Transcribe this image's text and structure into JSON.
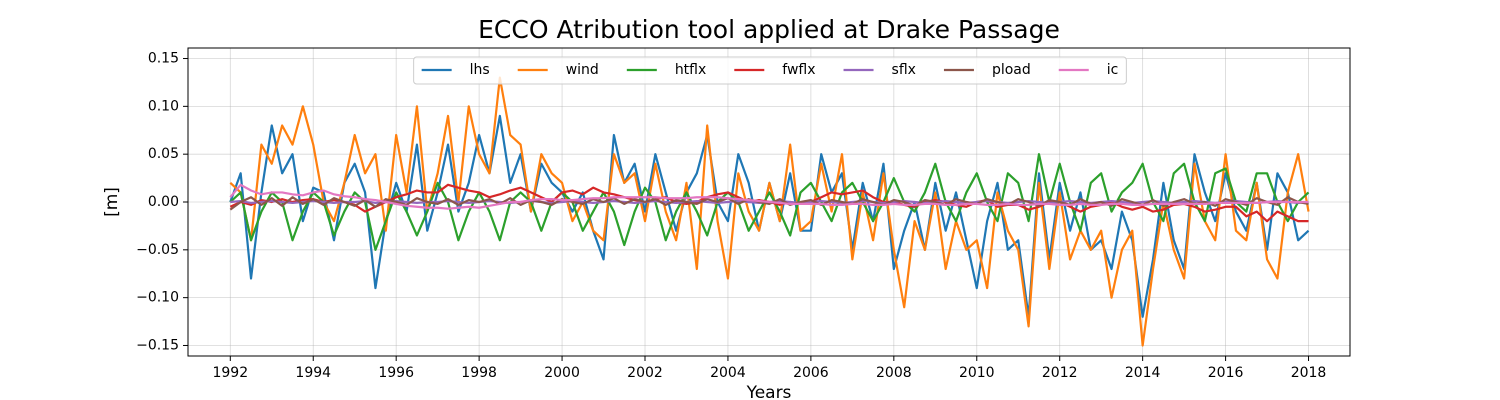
{
  "chart_data": {
    "type": "line",
    "title": "ECCO Atribution tool applied at Drake Passage",
    "xlabel": "Years",
    "ylabel": "[m]",
    "grid": true,
    "legend": "upper center",
    "xlim": [
      1990.98,
      2019.0
    ],
    "ylim": [
      -0.161,
      0.161
    ],
    "xticks": [
      1992,
      1994,
      1996,
      1998,
      2000,
      2002,
      2004,
      2006,
      2008,
      2010,
      2012,
      2014,
      2016,
      2018
    ],
    "yticks": [
      {
        "value": -0.15,
        "label": "−0.15"
      },
      {
        "value": -0.1,
        "label": "−0.10"
      },
      {
        "value": -0.05,
        "label": "−0.05"
      },
      {
        "value": 0,
        "label": "0.00"
      },
      {
        "value": 0.05,
        "label": "0.05"
      },
      {
        "value": 0.1,
        "label": "0.10"
      },
      {
        "value": 0.15,
        "label": "0.15"
      }
    ],
    "x": [
      1992.0,
      1992.25,
      1992.5,
      1992.75,
      1993.0,
      1993.25,
      1993.5,
      1993.75,
      1994.0,
      1994.25,
      1994.5,
      1994.75,
      1995.0,
      1995.25,
      1995.5,
      1995.75,
      1996.0,
      1996.25,
      1996.5,
      1996.75,
      1997.0,
      1997.25,
      1997.5,
      1997.75,
      1998.0,
      1998.25,
      1998.5,
      1998.75,
      1999.0,
      1999.25,
      1999.5,
      1999.75,
      2000.0,
      2000.25,
      2000.5,
      2000.75,
      2001.0,
      2001.25,
      2001.5,
      2001.75,
      2002.0,
      2002.25,
      2002.5,
      2002.75,
      2003.0,
      2003.25,
      2003.5,
      2003.75,
      2004.0,
      2004.25,
      2004.5,
      2004.75,
      2005.0,
      2005.25,
      2005.5,
      2005.75,
      2006.0,
      2006.25,
      2006.5,
      2006.75,
      2007.0,
      2007.25,
      2007.5,
      2007.75,
      2008.0,
      2008.25,
      2008.5,
      2008.75,
      2009.0,
      2009.25,
      2009.5,
      2009.75,
      2010.0,
      2010.25,
      2010.5,
      2010.75,
      2011.0,
      2011.25,
      2011.5,
      2011.75,
      2012.0,
      2012.25,
      2012.5,
      2012.75,
      2013.0,
      2013.25,
      2013.5,
      2013.75,
      2014.0,
      2014.25,
      2014.5,
      2014.75,
      2015.0,
      2015.25,
      2015.5,
      2015.75,
      2016.0,
      2016.25,
      2016.5,
      2016.75,
      2017.0,
      2017.25,
      2017.5,
      2017.75,
      2018.0
    ],
    "series": [
      {
        "name": "lhs",
        "color": "#1f77b4",
        "values": [
          0.0,
          0.03,
          -0.08,
          0.01,
          0.08,
          0.03,
          0.05,
          -0.02,
          0.015,
          0.01,
          -0.04,
          0.02,
          0.04,
          0.01,
          -0.09,
          -0.02,
          0.02,
          -0.01,
          0.06,
          -0.03,
          0.01,
          0.06,
          -0.01,
          0.02,
          0.07,
          0.03,
          0.09,
          0.02,
          0.05,
          -0.01,
          0.04,
          0.02,
          0.01,
          -0.01,
          0.01,
          -0.03,
          -0.06,
          0.07,
          0.02,
          0.04,
          -0.01,
          0.05,
          0.01,
          -0.03,
          0.01,
          0.03,
          0.07,
          0.0,
          -0.02,
          0.05,
          0.02,
          -0.03,
          0.02,
          -0.02,
          0.03,
          -0.03,
          -0.03,
          0.05,
          0.01,
          0.03,
          -0.05,
          0.02,
          -0.02,
          0.04,
          -0.07,
          -0.03,
          0.0,
          -0.05,
          0.02,
          -0.03,
          0.01,
          -0.04,
          -0.09,
          -0.02,
          0.02,
          -0.05,
          -0.04,
          -0.12,
          0.03,
          -0.06,
          0.02,
          -0.03,
          0.01,
          -0.05,
          -0.04,
          -0.07,
          -0.01,
          -0.04,
          -0.12,
          -0.06,
          0.02,
          -0.04,
          -0.07,
          0.05,
          0.01,
          -0.02,
          0.03,
          -0.01,
          -0.03,
          0.02,
          -0.05,
          0.03,
          0.01,
          -0.04,
          -0.03
        ]
      },
      {
        "name": "wind",
        "color": "#ff7f0e",
        "values": [
          0.02,
          0.01,
          -0.04,
          0.06,
          0.04,
          0.08,
          0.06,
          0.1,
          0.06,
          0.0,
          -0.02,
          0.02,
          0.07,
          0.03,
          0.05,
          -0.03,
          0.07,
          0.01,
          0.1,
          -0.01,
          0.03,
          0.09,
          0.0,
          0.1,
          0.05,
          0.03,
          0.13,
          0.07,
          0.06,
          -0.01,
          0.05,
          0.03,
          0.02,
          -0.02,
          0.0,
          -0.03,
          -0.04,
          0.05,
          0.02,
          0.03,
          -0.02,
          0.04,
          -0.01,
          -0.04,
          0.02,
          -0.07,
          0.08,
          -0.02,
          -0.08,
          0.03,
          -0.01,
          -0.03,
          0.02,
          -0.02,
          0.06,
          -0.03,
          -0.02,
          0.04,
          -0.01,
          0.05,
          -0.06,
          0.01,
          -0.04,
          0.03,
          -0.05,
          -0.11,
          -0.02,
          -0.05,
          0.01,
          -0.07,
          -0.02,
          -0.05,
          -0.04,
          -0.09,
          0.01,
          -0.03,
          -0.05,
          -0.13,
          0.02,
          -0.07,
          0.01,
          -0.06,
          -0.03,
          -0.05,
          -0.03,
          -0.1,
          -0.05,
          -0.03,
          -0.15,
          -0.07,
          0.0,
          -0.05,
          -0.08,
          0.04,
          -0.02,
          -0.04,
          0.05,
          -0.03,
          -0.04,
          0.02,
          -0.06,
          -0.08,
          0.01,
          0.05,
          -0.01
        ]
      },
      {
        "name": "htflx",
        "color": "#2ca02c",
        "values": [
          0.0,
          0.01,
          -0.04,
          -0.01,
          0.01,
          0.0,
          -0.04,
          -0.01,
          0.01,
          0.0,
          -0.035,
          -0.01,
          0.01,
          0.0,
          -0.05,
          -0.02,
          0.01,
          -0.01,
          -0.035,
          -0.01,
          0.02,
          0.0,
          -0.04,
          -0.01,
          0.01,
          -0.01,
          -0.04,
          0.0,
          0.01,
          0.0,
          -0.03,
          0.0,
          0.01,
          0.0,
          -0.03,
          -0.01,
          0.01,
          -0.01,
          -0.045,
          -0.01,
          0.015,
          0.0,
          -0.04,
          -0.01,
          0.01,
          -0.01,
          -0.035,
          0.0,
          0.01,
          0.0,
          -0.03,
          -0.01,
          0.01,
          -0.01,
          -0.035,
          0.01,
          0.02,
          0.0,
          -0.02,
          0.01,
          0.02,
          0.0,
          -0.02,
          0.0,
          0.025,
          0.0,
          -0.01,
          0.01,
          0.04,
          0.0,
          -0.02,
          0.01,
          0.03,
          0.0,
          -0.02,
          0.03,
          0.02,
          -0.02,
          0.05,
          0.0,
          0.04,
          0.0,
          -0.03,
          0.02,
          0.03,
          -0.01,
          0.01,
          0.02,
          0.04,
          0.0,
          -0.02,
          0.03,
          0.04,
          0.0,
          -0.02,
          0.03,
          0.035,
          0.0,
          -0.01,
          0.03,
          0.03,
          0.0,
          -0.02,
          0.0,
          0.01
        ]
      },
      {
        "name": "fwflx",
        "color": "#d62728",
        "values": [
          -0.005,
          0.0,
          -0.003,
          0.002,
          0.0,
          0.003,
          0.0,
          0.002,
          0.003,
          0.0,
          0.002,
          0.0,
          -0.003,
          -0.01,
          -0.005,
          0.0,
          0.005,
          0.008,
          0.012,
          0.01,
          0.01,
          0.018,
          0.015,
          0.012,
          0.01,
          0.005,
          0.008,
          0.012,
          0.015,
          0.01,
          0.005,
          0.0,
          0.01,
          0.012,
          0.008,
          0.015,
          0.01,
          0.008,
          0.005,
          0.002,
          0.0,
          0.003,
          0.005,
          0.0,
          -0.002,
          0.0,
          0.005,
          0.008,
          0.01,
          0.005,
          0.0,
          0.002,
          0.0,
          -0.003,
          0.0,
          -0.002,
          0.0,
          0.005,
          0.01,
          0.008,
          0.01,
          0.012,
          0.005,
          0.0,
          0.0,
          -0.003,
          -0.005,
          0.0,
          0.002,
          0.0,
          -0.003,
          -0.005,
          0.0,
          0.002,
          -0.005,
          -0.003,
          -0.003,
          -0.008,
          -0.005,
          0.0,
          0.0,
          -0.005,
          -0.01,
          -0.005,
          -0.003,
          0.0,
          -0.005,
          -0.008,
          -0.005,
          -0.01,
          -0.008,
          -0.003,
          -0.002,
          -0.005,
          -0.01,
          -0.008,
          -0.005,
          -0.005,
          -0.015,
          -0.01,
          -0.02,
          -0.01,
          -0.015,
          -0.02,
          -0.02
        ]
      },
      {
        "name": "sflx",
        "color": "#9467bd",
        "values": [
          0.0,
          0.001,
          -0.001,
          0.0,
          0.001,
          0.0,
          -0.001,
          0.0,
          0.001,
          0.0,
          -0.001,
          0.0,
          0.0,
          0.001,
          -0.001,
          0.0,
          0.001,
          0.0,
          -0.001,
          0.0,
          0.0,
          0.001,
          0.0,
          -0.001,
          0.0,
          0.001,
          0.0,
          -0.001,
          0.0,
          0.001,
          0.0,
          -0.001,
          0.0,
          0.001,
          0.0,
          -0.001,
          0.0,
          0.001,
          0.0,
          -0.001,
          0.0,
          0.001,
          0.0,
          -0.001,
          0.0,
          0.001,
          0.0,
          -0.001,
          0.0,
          0.001,
          0.0,
          -0.001,
          0.0,
          0.001,
          0.0,
          -0.001,
          0.0,
          0.001,
          0.0,
          -0.001,
          0.0,
          0.001,
          0.0,
          -0.001,
          0.0,
          0.001,
          0.0,
          -0.001,
          0.0,
          0.001,
          0.0,
          -0.001,
          0.0,
          0.001,
          0.0,
          -0.001,
          0.0,
          0.001,
          0.0,
          -0.001,
          0.0,
          0.001,
          0.0,
          -0.001,
          0.0,
          0.001,
          0.0,
          -0.001,
          0.0,
          0.001,
          0.0,
          -0.001,
          0.0,
          0.001,
          0.0,
          -0.001,
          0.0,
          0.001,
          0.0,
          -0.001,
          0.0,
          0.001,
          0.0,
          -0.001,
          0.0
        ]
      },
      {
        "name": "pload",
        "color": "#8c564b",
        "values": [
          -0.008,
          0.0,
          0.005,
          -0.003,
          0.004,
          -0.004,
          0.005,
          -0.002,
          0.003,
          -0.003,
          0.004,
          0.0,
          -0.004,
          0.002,
          -0.005,
          0.003,
          0.0,
          -0.003,
          0.004,
          0.0,
          -0.002,
          0.003,
          -0.003,
          0.002,
          0.0,
          0.003,
          -0.002,
          0.004,
          -0.003,
          0.002,
          0.0,
          -0.003,
          0.003,
          0.0,
          -0.002,
          0.003,
          0.0,
          0.004,
          -0.002,
          0.003,
          0.0,
          0.003,
          -0.003,
          0.002,
          0.0,
          -0.002,
          0.003,
          0.0,
          0.004,
          -0.002,
          0.003,
          0.0,
          -0.002,
          0.003,
          -0.003,
          0.0,
          0.002,
          -0.003,
          0.002,
          0.0,
          -0.002,
          0.003,
          0.0,
          -0.003,
          0.002,
          0.0,
          -0.004,
          0.002,
          0.0,
          -0.003,
          0.003,
          0.0,
          -0.002,
          0.003,
          0.0,
          -0.003,
          0.003,
          0.0,
          -0.004,
          0.002,
          0.0,
          -0.003,
          0.003,
          -0.002,
          0.0,
          -0.004,
          0.003,
          0.0,
          -0.003,
          0.002,
          -0.004,
          0.0,
          0.003,
          -0.002,
          0.0,
          -0.004,
          0.003,
          0.0,
          -0.003,
          0.004,
          0.0,
          -0.003,
          0.005,
          0.0,
          -0.002
        ]
      },
      {
        "name": "ic",
        "color": "#e377c2",
        "values": [
          0.005,
          0.018,
          0.012,
          0.008,
          0.01,
          0.01,
          0.008,
          0.007,
          0.01,
          0.012,
          0.008,
          0.006,
          0.005,
          0.003,
          0.002,
          0.0,
          -0.002,
          -0.004,
          -0.005,
          -0.006,
          -0.006,
          -0.007,
          -0.006,
          -0.005,
          -0.006,
          -0.004,
          -0.002,
          0.0,
          0.0,
          0.002,
          0.003,
          0.003,
          0.002,
          0.002,
          0.003,
          0.004,
          0.004,
          0.005,
          0.005,
          0.005,
          0.005,
          0.005,
          0.004,
          0.004,
          0.004,
          0.005,
          0.005,
          0.005,
          0.004,
          0.003,
          0.002,
          0.001,
          0.0,
          -0.001,
          -0.002,
          -0.002,
          -0.002,
          -0.002,
          -0.003,
          -0.003,
          -0.002,
          -0.002,
          -0.003,
          -0.003,
          -0.002,
          -0.003,
          -0.003,
          -0.002,
          -0.002,
          -0.003,
          -0.003,
          -0.002,
          -0.002,
          -0.003,
          -0.003,
          -0.002,
          -0.003,
          -0.003,
          -0.002,
          -0.002,
          -0.003,
          -0.003,
          -0.002,
          -0.003,
          -0.003,
          -0.002,
          -0.002,
          -0.003,
          -0.003,
          -0.002,
          -0.002,
          -0.002,
          -0.002,
          -0.002,
          -0.002,
          -0.001,
          -0.001,
          -0.001,
          -0.001,
          -0.001,
          0.0,
          0.0,
          0.0,
          0.0,
          0.0
        ]
      }
    ]
  }
}
